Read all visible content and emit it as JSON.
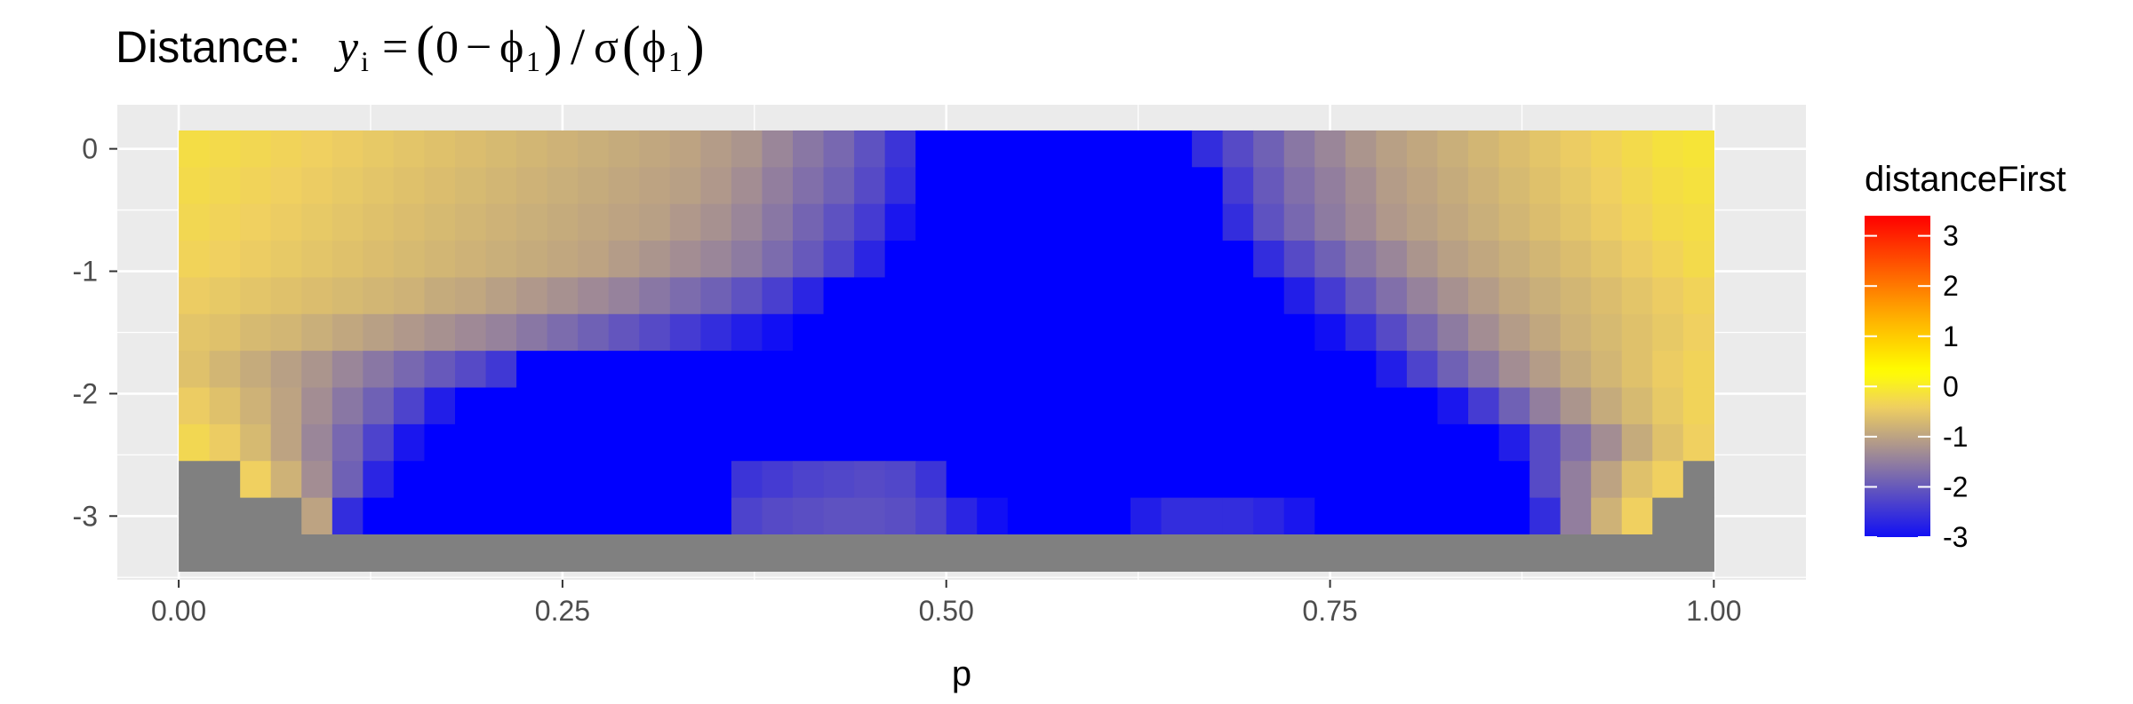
{
  "chart_data": {
    "type": "heatmap",
    "title": {
      "prefix": "Distance: ",
      "y": "y",
      "i": "i",
      "eq": "=",
      "lparen": "(",
      "zero": "0",
      "minus": "−",
      "phi": "ϕ",
      "one": "1",
      "rparen": ")",
      "slash": "/",
      "sigma": "σ",
      "formula_text": "y_i = (0 − ϕ_1)/σ(ϕ_1)"
    },
    "xlabel": "p",
    "ylabel": "",
    "x_ticks": [
      {
        "value": 0.0,
        "label": "0.00"
      },
      {
        "value": 0.25,
        "label": "0.25"
      },
      {
        "value": 0.5,
        "label": "0.50"
      },
      {
        "value": 0.75,
        "label": "0.75"
      },
      {
        "value": 1.0,
        "label": "1.00"
      }
    ],
    "y_ticks": [
      {
        "value": 0,
        "label": "0"
      },
      {
        "value": -1,
        "label": "-1"
      },
      {
        "value": -2,
        "label": "-2"
      },
      {
        "value": -3,
        "label": "-3"
      }
    ],
    "xlim": [
      -0.04,
      1.06
    ],
    "ylim": [
      -3.52,
      0.36
    ],
    "grid": true,
    "x_range": [
      0.01,
      0.99
    ],
    "x_count": 50,
    "x_step": 0.02,
    "y_range": [
      0.0,
      -3.3
    ],
    "y_count": 12,
    "y_step": -0.3,
    "na_color": "#808080",
    "legend": {
      "title": "distanceFirst",
      "position": "right",
      "limits": [
        -3,
        3.4
      ],
      "breaks": [
        3,
        2,
        1,
        0,
        -1,
        -2,
        -3
      ],
      "labels": [
        "3",
        "2",
        "1",
        "0",
        "-1",
        "-2",
        "-3"
      ],
      "gradient": [
        {
          "value": -3.2,
          "color": "#0000ff"
        },
        {
          "value": -0.4,
          "color": "#f0d060"
        },
        {
          "value": 0.3,
          "color": "#ffff00"
        },
        {
          "value": 1.5,
          "color": "#ffa500"
        },
        {
          "value": 3.4,
          "color": "#ff0000"
        }
      ]
    },
    "rows": [
      {
        "y": 0.0,
        "values": [
          -0.2,
          -0.25,
          -0.3,
          -0.35,
          -0.4,
          -0.45,
          -0.5,
          -0.55,
          -0.6,
          -0.65,
          -0.7,
          -0.75,
          -0.8,
          -0.85,
          -0.9,
          -0.95,
          -1.0,
          -1.1,
          -1.2,
          -1.4,
          -1.6,
          -1.8,
          -2.1,
          -2.5,
          -3.2,
          -3.2,
          -3.2,
          -3.2,
          -3.2,
          -3.2,
          -3.2,
          -3.2,
          -3.2,
          -2.6,
          -2.2,
          -1.9,
          -1.6,
          -1.4,
          -1.2,
          -1.05,
          -0.95,
          -0.85,
          -0.75,
          -0.65,
          -0.55,
          -0.45,
          -0.35,
          -0.25,
          -0.15,
          -0.1
        ]
      },
      {
        "y": -0.3,
        "values": [
          -0.25,
          -0.3,
          -0.35,
          -0.4,
          -0.45,
          -0.5,
          -0.55,
          -0.6,
          -0.65,
          -0.7,
          -0.75,
          -0.8,
          -0.85,
          -0.9,
          -0.95,
          -1.0,
          -1.05,
          -1.15,
          -1.3,
          -1.5,
          -1.7,
          -1.9,
          -2.2,
          -2.6,
          -3.2,
          -3.2,
          -3.2,
          -3.2,
          -3.2,
          -3.2,
          -3.2,
          -3.2,
          -3.2,
          -3.2,
          -2.4,
          -2.0,
          -1.7,
          -1.5,
          -1.3,
          -1.1,
          -1.0,
          -0.9,
          -0.8,
          -0.7,
          -0.6,
          -0.5,
          -0.4,
          -0.3,
          -0.2,
          -0.15
        ]
      },
      {
        "y": -0.6,
        "values": [
          -0.3,
          -0.35,
          -0.4,
          -0.45,
          -0.5,
          -0.55,
          -0.6,
          -0.65,
          -0.7,
          -0.75,
          -0.8,
          -0.85,
          -0.9,
          -0.95,
          -1.0,
          -1.05,
          -1.15,
          -1.25,
          -1.4,
          -1.6,
          -1.85,
          -2.1,
          -2.4,
          -2.9,
          -3.2,
          -3.2,
          -3.2,
          -3.2,
          -3.2,
          -3.2,
          -3.2,
          -3.2,
          -3.2,
          -3.2,
          -2.6,
          -2.1,
          -1.8,
          -1.55,
          -1.35,
          -1.15,
          -1.05,
          -0.95,
          -0.85,
          -0.75,
          -0.65,
          -0.55,
          -0.45,
          -0.35,
          -0.25,
          -0.2
        ]
      },
      {
        "y": -0.9,
        "values": [
          -0.35,
          -0.4,
          -0.45,
          -0.5,
          -0.55,
          -0.6,
          -0.65,
          -0.7,
          -0.75,
          -0.8,
          -0.85,
          -0.9,
          -0.95,
          -1.0,
          -1.1,
          -1.2,
          -1.3,
          -1.4,
          -1.55,
          -1.75,
          -2.0,
          -2.3,
          -2.7,
          -3.2,
          -3.2,
          -3.2,
          -3.2,
          -3.2,
          -3.2,
          -3.2,
          -3.2,
          -3.2,
          -3.2,
          -3.2,
          -3.2,
          -2.6,
          -2.2,
          -1.9,
          -1.6,
          -1.4,
          -1.2,
          -1.05,
          -0.95,
          -0.85,
          -0.75,
          -0.65,
          -0.55,
          -0.45,
          -0.35,
          -0.25
        ]
      },
      {
        "y": -1.2,
        "values": [
          -0.45,
          -0.5,
          -0.55,
          -0.6,
          -0.65,
          -0.7,
          -0.75,
          -0.8,
          -0.9,
          -0.95,
          -1.05,
          -1.15,
          -1.25,
          -1.35,
          -1.45,
          -1.6,
          -1.75,
          -1.9,
          -2.1,
          -2.35,
          -2.7,
          -3.2,
          -3.2,
          -3.2,
          -3.2,
          -3.2,
          -3.2,
          -3.2,
          -3.2,
          -3.2,
          -3.2,
          -3.2,
          -3.2,
          -3.2,
          -3.2,
          -3.2,
          -2.8,
          -2.4,
          -2.0,
          -1.7,
          -1.45,
          -1.25,
          -1.1,
          -0.95,
          -0.85,
          -0.75,
          -0.65,
          -0.55,
          -0.45,
          -0.35
        ]
      },
      {
        "y": -1.5,
        "values": [
          -0.55,
          -0.6,
          -0.7,
          -0.75,
          -0.85,
          -0.95,
          -1.05,
          -1.15,
          -1.25,
          -1.35,
          -1.45,
          -1.6,
          -1.75,
          -1.9,
          -2.05,
          -2.2,
          -2.4,
          -2.6,
          -2.8,
          -3.0,
          -3.2,
          -3.2,
          -3.2,
          -3.2,
          -3.2,
          -3.2,
          -3.2,
          -3.2,
          -3.2,
          -3.2,
          -3.2,
          -3.2,
          -3.2,
          -3.2,
          -3.2,
          -3.2,
          -3.2,
          -3.0,
          -2.6,
          -2.2,
          -1.85,
          -1.55,
          -1.3,
          -1.1,
          -0.95,
          -0.8,
          -0.7,
          -0.6,
          -0.5,
          -0.4
        ]
      },
      {
        "y": -1.8,
        "values": [
          -0.6,
          -0.75,
          -0.9,
          -1.05,
          -1.2,
          -1.4,
          -1.6,
          -1.8,
          -2.0,
          -2.2,
          -2.45,
          -3.2,
          -3.2,
          -3.2,
          -3.2,
          -3.2,
          -3.2,
          -3.2,
          -3.2,
          -3.2,
          -3.2,
          -3.2,
          -3.2,
          -3.2,
          -3.2,
          -3.2,
          -3.2,
          -3.2,
          -3.2,
          -3.2,
          -3.2,
          -3.2,
          -3.2,
          -3.2,
          -3.2,
          -3.2,
          -3.2,
          -3.2,
          -3.2,
          -2.8,
          -2.3,
          -1.9,
          -1.6,
          -1.3,
          -1.1,
          -0.9,
          -0.75,
          -0.6,
          -0.45,
          -0.35
        ]
      },
      {
        "y": -2.1,
        "values": [
          -0.45,
          -0.6,
          -0.8,
          -1.0,
          -1.3,
          -1.6,
          -1.9,
          -2.3,
          -2.8,
          -3.2,
          -3.2,
          -3.2,
          -3.2,
          -3.2,
          -3.2,
          -3.2,
          -3.2,
          -3.2,
          -3.2,
          -3.2,
          -3.2,
          -3.2,
          -3.2,
          -3.2,
          -3.2,
          -3.2,
          -3.2,
          -3.2,
          -3.2,
          -3.2,
          -3.2,
          -3.2,
          -3.2,
          -3.2,
          -3.2,
          -3.2,
          -3.2,
          -3.2,
          -3.2,
          -3.2,
          -3.2,
          -2.9,
          -2.4,
          -1.9,
          -1.5,
          -1.2,
          -0.9,
          -0.7,
          -0.5,
          -0.35
        ]
      },
      {
        "y": -2.4,
        "values": [
          -0.3,
          -0.45,
          -0.7,
          -1.0,
          -1.4,
          -1.8,
          -2.3,
          -2.9,
          -3.2,
          -3.2,
          -3.2,
          -3.2,
          -3.2,
          -3.2,
          -3.2,
          -3.2,
          -3.2,
          -3.2,
          -3.2,
          -3.2,
          -3.2,
          -3.2,
          -3.2,
          -3.2,
          -3.2,
          -3.2,
          -3.2,
          -3.2,
          -3.2,
          -3.2,
          -3.2,
          -3.2,
          -3.2,
          -3.2,
          -3.2,
          -3.2,
          -3.2,
          -3.2,
          -3.2,
          -3.2,
          -3.2,
          -3.2,
          -3.2,
          -2.8,
          -2.2,
          -1.7,
          -1.3,
          -0.9,
          -0.6,
          -0.4
        ]
      },
      {
        "y": -2.7,
        "values": [
          null,
          null,
          -0.4,
          -0.8,
          -1.3,
          -1.9,
          -2.7,
          -3.2,
          -3.2,
          -3.2,
          -3.2,
          -3.2,
          -3.2,
          -3.2,
          -3.2,
          -3.2,
          -3.2,
          -3.2,
          -2.5,
          -2.4,
          -2.3,
          -2.25,
          -2.2,
          -2.25,
          -2.5,
          -3.2,
          -3.2,
          -3.2,
          -3.2,
          -3.2,
          -3.2,
          -3.2,
          -3.2,
          -3.2,
          -3.2,
          -3.2,
          -3.2,
          -3.2,
          -3.2,
          -3.2,
          -3.2,
          -3.2,
          -3.2,
          -3.2,
          -2.2,
          -1.5,
          -1.0,
          -0.6,
          -0.4,
          null
        ]
      },
      {
        "y": -3.0,
        "values": [
          null,
          null,
          null,
          null,
          -1.0,
          -2.6,
          -3.2,
          -3.2,
          -3.2,
          -3.2,
          -3.2,
          -3.2,
          -3.2,
          -3.2,
          -3.2,
          -3.2,
          -3.2,
          -3.2,
          -2.3,
          -2.2,
          -2.15,
          -2.1,
          -2.1,
          -2.15,
          -2.3,
          -2.7,
          -3.0,
          -3.2,
          -3.2,
          -3.2,
          -3.2,
          -2.8,
          -2.6,
          -2.6,
          -2.6,
          -2.7,
          -2.9,
          -3.2,
          -3.2,
          -3.2,
          -3.2,
          -3.2,
          -3.2,
          -3.2,
          -2.6,
          -1.5,
          -0.8,
          -0.4,
          null,
          null
        ]
      },
      {
        "y": -3.3,
        "values": [
          null,
          null,
          null,
          null,
          null,
          null,
          null,
          null,
          null,
          null,
          null,
          null,
          null,
          null,
          null,
          null,
          null,
          null,
          null,
          null,
          null,
          null,
          null,
          null,
          null,
          null,
          null,
          null,
          null,
          null,
          null,
          null,
          null,
          null,
          null,
          null,
          null,
          null,
          null,
          null,
          null,
          null,
          null,
          null,
          null,
          null,
          null,
          null,
          null,
          null
        ]
      }
    ]
  }
}
